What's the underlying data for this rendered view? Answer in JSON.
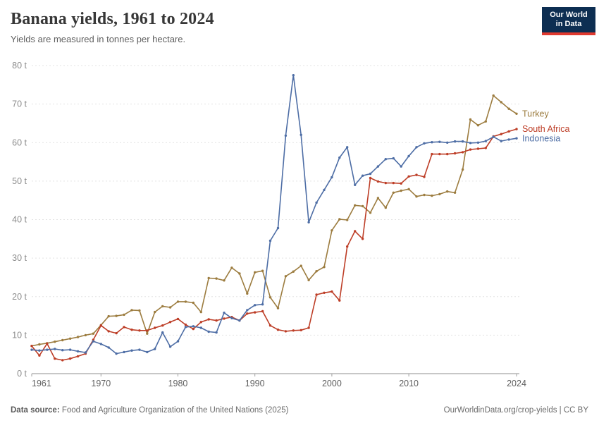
{
  "header": {
    "title": "Banana yields, 1961 to 2024",
    "subtitle": "Yields are measured in tonnes per hectare.",
    "logo": {
      "line1": "Our World",
      "line2": "in Data",
      "bg": "#0d2e52",
      "accent": "#e0392f"
    }
  },
  "footer": {
    "source_label": "Data source:",
    "source_value": " Food and Agriculture Organization of the United Nations (2025)",
    "credit": "OurWorldinData.org/crop-yields | CC BY"
  },
  "chart_data": {
    "type": "line",
    "title": "Banana yields, 1961 to 2024",
    "subtitle": "Yields are measured in tonnes per hectare.",
    "xlabel": "",
    "ylabel": "tonnes per hectare",
    "years": {
      "start": 1961,
      "end": 2024
    },
    "ylim": [
      0,
      80
    ],
    "yticks": [
      0,
      10,
      20,
      30,
      40,
      50,
      60,
      70,
      80
    ],
    "ytick_suffix": " t",
    "xticks": [
      1961,
      1970,
      1980,
      1990,
      2000,
      2010,
      2024
    ],
    "grid": "dashed-horizontal",
    "legend_position": "right-end-labels",
    "series": [
      {
        "name": "Turkey",
        "color": "#9c7c3f",
        "values": [
          7.2,
          7.6,
          7.9,
          8.3,
          8.7,
          9.1,
          9.5,
          10,
          10.4,
          12.6,
          14.9,
          15,
          15.3,
          16.5,
          16.4,
          10.4,
          16,
          17.5,
          17.2,
          18.7,
          18.7,
          18.4,
          16,
          24.8,
          24.7,
          24.2,
          27.5,
          26,
          20.8,
          26.3,
          26.7,
          19.8,
          17,
          25.3,
          26.5,
          28,
          24.3,
          26.6,
          27.7,
          37.2,
          40.1,
          39.9,
          43.7,
          43.5,
          41.8,
          45.6,
          43.1,
          47,
          47.5,
          47.9,
          46,
          46.4,
          46.2,
          46.6,
          47.3,
          47,
          53,
          66,
          64.5,
          65.5,
          72.2,
          70.5,
          68.8,
          67.5
        ]
      },
      {
        "name": "South Africa",
        "color": "#bd3d26",
        "values": [
          7.2,
          4.7,
          7.8,
          3.9,
          3.5,
          3.9,
          4.5,
          5.2,
          8.8,
          12.5,
          11,
          10.5,
          12.1,
          11.4,
          11.2,
          11.2,
          11.9,
          12.5,
          13.4,
          14.2,
          12.7,
          11.6,
          13.4,
          14.1,
          13.8,
          14.3,
          14.7,
          13.8,
          15.6,
          15.9,
          16.2,
          12.5,
          11.4,
          11,
          11.2,
          11.3,
          11.9,
          20.5,
          21,
          21.3,
          19,
          33,
          37,
          35,
          50.8,
          49.9,
          49.5,
          49.5,
          49.4,
          51.2,
          51.6,
          51.1,
          57,
          57,
          57,
          57.2,
          57.5,
          58.2,
          58.4,
          58.6,
          61.6,
          62.2,
          62.9,
          63.5
        ]
      },
      {
        "name": "Indonesia",
        "color": "#4d6da5",
        "values": [
          6.2,
          6,
          6.2,
          6.4,
          6.1,
          6.2,
          5.8,
          5.5,
          8.4,
          7.7,
          6.8,
          5.2,
          5.6,
          6,
          6.2,
          5.6,
          6.4,
          10.7,
          7,
          8.4,
          12.1,
          12.3,
          11.9,
          10.9,
          10.7,
          15.8,
          14.4,
          13.8,
          16.5,
          17.8,
          18,
          34.5,
          37.8,
          61.8,
          77.5,
          62,
          39.3,
          44.4,
          47.7,
          51,
          56.1,
          58.8,
          49,
          51.4,
          51.9,
          53.8,
          55.7,
          55.9,
          53.8,
          56.5,
          58.8,
          59.8,
          60.1,
          60.2,
          60,
          60.3,
          60.3,
          59.9,
          60,
          60.4,
          61.5,
          60.4,
          60.8,
          61.1
        ]
      }
    ]
  }
}
